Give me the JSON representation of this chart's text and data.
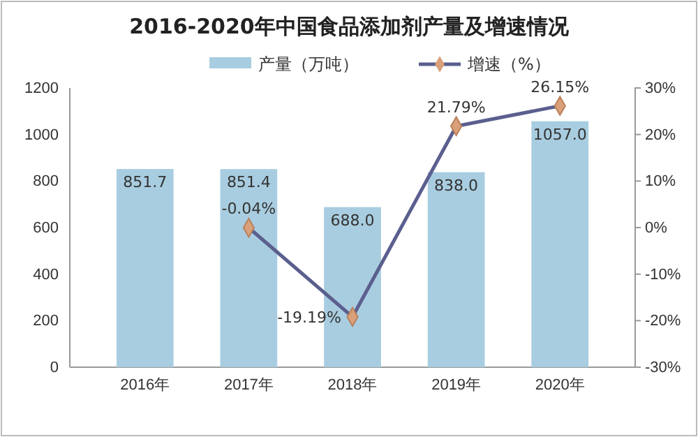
{
  "chart_data": {
    "type": "bar",
    "title": "2016-2020年中国食品添加剂产量及增速情况",
    "categories": [
      "2016年",
      "2017年",
      "2018年",
      "2019年",
      "2020年"
    ],
    "series": [
      {
        "name": "产量（万吨）",
        "color": "#a9cde0",
        "values": [
          851.7,
          851.4,
          688.0,
          838.0,
          1057.0
        ],
        "value_labels": [
          "851.7",
          "851.4",
          "688.0",
          "838.0",
          "1057.0"
        ]
      },
      {
        "name": "增速（%）",
        "type": "line",
        "axis": "y2",
        "color": "#5b5f8e",
        "marker": "diamond",
        "values": [
          null,
          -0.04,
          -19.19,
          21.79,
          26.15
        ],
        "value_labels": [
          null,
          "-0.04%",
          "-19.19%",
          "21.79%",
          "26.15%"
        ]
      }
    ],
    "ylim": [
      0,
      1200
    ],
    "yticks": [
      0,
      200,
      400,
      600,
      800,
      1000,
      1200
    ],
    "y2lim": [
      -30,
      30
    ],
    "y2ticks": [
      {
        "value": -30,
        "label": "-30%"
      },
      {
        "value": -20,
        "label": "-20%"
      },
      {
        "value": -10,
        "label": "-10%"
      },
      {
        "value": 0,
        "label": "0%"
      },
      {
        "value": 10,
        "label": "10%"
      },
      {
        "value": 20,
        "label": "20%"
      },
      {
        "value": 30,
        "label": "30%"
      }
    ],
    "legend": "top",
    "grid": false
  }
}
